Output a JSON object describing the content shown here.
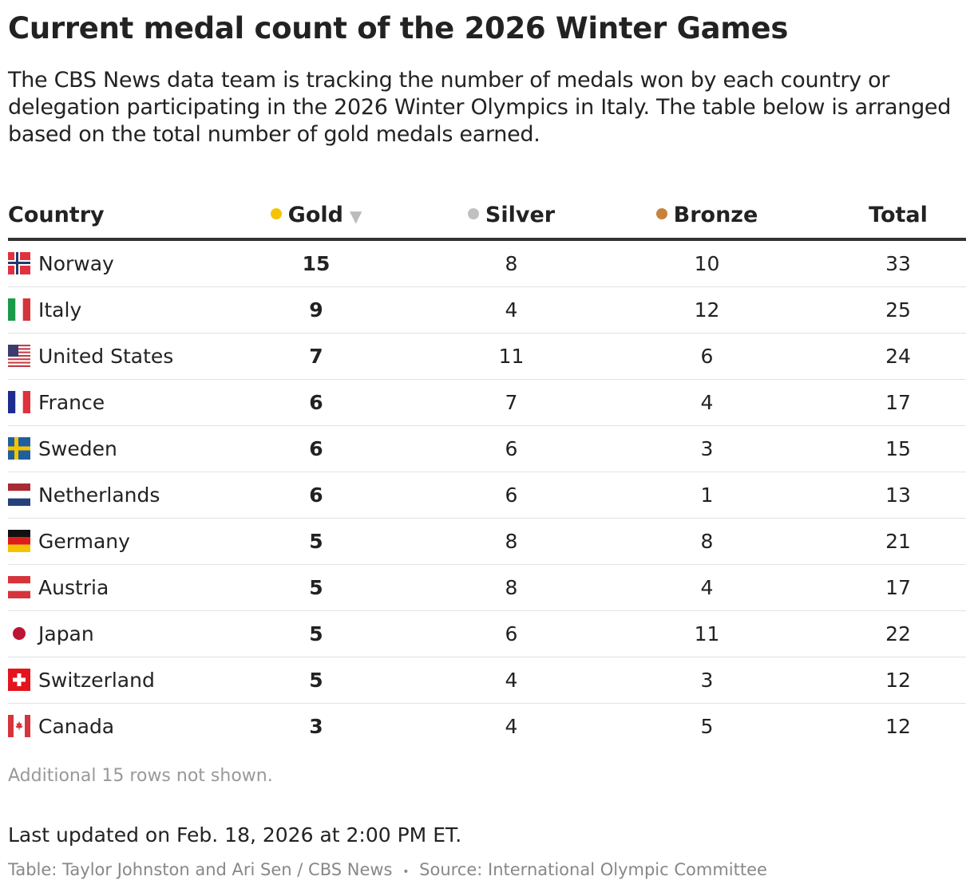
{
  "title": "Current medal count of the 2026 Winter Games",
  "description": "The CBS News data team is tracking the number of medals won by each country or delegation participating in the 2026 Winter Olympics in Italy. The table below is arranged based on the total number of gold medals earned.",
  "columns": {
    "country": "Country",
    "gold": "Gold",
    "silver": "Silver",
    "bronze": "Bronze",
    "total": "Total",
    "sort_icon": "sort-desc-triangle"
  },
  "colors": {
    "gold": "#f5c400",
    "silver": "#c0c0c0",
    "bronze": "#c8813a"
  },
  "rows": [
    {
      "country": "Norway",
      "flag": "norway",
      "gold": "15",
      "silver": "8",
      "bronze": "10",
      "total": "33"
    },
    {
      "country": "Italy",
      "flag": "italy",
      "gold": "9",
      "silver": "4",
      "bronze": "12",
      "total": "25"
    },
    {
      "country": "United States",
      "flag": "usa",
      "gold": "7",
      "silver": "11",
      "bronze": "6",
      "total": "24"
    },
    {
      "country": "France",
      "flag": "france",
      "gold": "6",
      "silver": "7",
      "bronze": "4",
      "total": "17"
    },
    {
      "country": "Sweden",
      "flag": "sweden",
      "gold": "6",
      "silver": "6",
      "bronze": "3",
      "total": "15"
    },
    {
      "country": "Netherlands",
      "flag": "netherlands",
      "gold": "6",
      "silver": "6",
      "bronze": "1",
      "total": "13"
    },
    {
      "country": "Germany",
      "flag": "germany",
      "gold": "5",
      "silver": "8",
      "bronze": "8",
      "total": "21"
    },
    {
      "country": "Austria",
      "flag": "austria",
      "gold": "5",
      "silver": "8",
      "bronze": "4",
      "total": "17"
    },
    {
      "country": "Japan",
      "flag": "japan",
      "gold": "5",
      "silver": "6",
      "bronze": "11",
      "total": "22"
    },
    {
      "country": "Switzerland",
      "flag": "switzerland",
      "gold": "5",
      "silver": "4",
      "bronze": "3",
      "total": "12"
    },
    {
      "country": "Canada",
      "flag": "canada",
      "gold": "3",
      "silver": "4",
      "bronze": "5",
      "total": "12"
    }
  ],
  "note": "Additional 15 rows not shown.",
  "updated": "Last updated on Feb. 18, 2026 at 2:00 PM ET.",
  "credit": "Table: Taylor Johnston and Ari Sen / CBS News",
  "separator": "•",
  "source": "Source: International Olympic Committee"
}
